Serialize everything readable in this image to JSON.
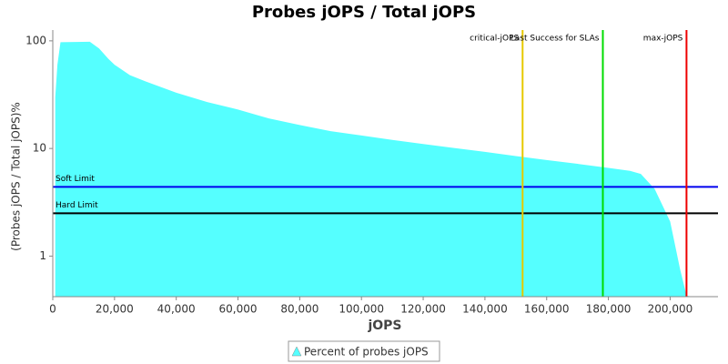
{
  "chart_data": {
    "type": "area",
    "title": "Probes jOPS / Total jOPS",
    "x_label": "jOPS",
    "y_label": "(Probes jOPS / Total jOPS)%",
    "log_scale_y": true,
    "xlim": [
      0,
      215500
    ],
    "ylim": [
      0.42,
      126
    ],
    "xticks": [
      0,
      {
        "value": 20000,
        "label": "20,000"
      },
      {
        "value": 40000,
        "label": "40,000"
      },
      {
        "value": 60000,
        "label": "60,000"
      },
      {
        "value": 80000,
        "label": "80,000"
      },
      {
        "value": 100000,
        "label": "100,000"
      },
      {
        "value": 120000,
        "label": "120,000"
      },
      {
        "value": 140000,
        "label": "140,000"
      },
      {
        "value": 160000,
        "label": "160,000"
      },
      {
        "value": 180000,
        "label": "180,000"
      },
      {
        "value": 200000,
        "label": "200,000"
      }
    ],
    "yticks": [
      1,
      10,
      100
    ],
    "series": [
      {
        "name": "Percent of probes jOPS",
        "color": "#55ffff",
        "x": [
          800,
          1500,
          2500,
          12000,
          15000,
          18000,
          20000,
          25000,
          30000,
          40000,
          50000,
          60000,
          70000,
          80000,
          90000,
          100000,
          110000,
          120000,
          130000,
          140000,
          150000,
          160000,
          170000,
          180000,
          187000,
          190500,
          195000,
          200000,
          203200,
          205300,
          207000,
          215500
        ],
        "values": [
          30,
          60,
          97,
          98,
          85,
          68,
          60,
          48,
          42,
          33,
          27,
          23,
          19,
          16.5,
          14.5,
          13.2,
          12,
          11,
          10.1,
          9.3,
          8.5,
          7.8,
          7.2,
          6.6,
          6.2,
          5.8,
          4.2,
          2.1,
          0.76,
          0.43,
          0.42,
          0.42
        ]
      }
    ],
    "vertical_lines": [
      {
        "label": "critical-jOPS",
        "value": 152200,
        "color": "#e6c800"
      },
      {
        "label": "Last Success for SLAs",
        "value": 178200,
        "color": "#00dd00"
      },
      {
        "label": "max-jOPS",
        "value": 205300,
        "color": "#ee0000"
      }
    ],
    "horizontal_lines": [
      {
        "label": "Soft Limit",
        "value": 4.4,
        "color": "#0000ee"
      },
      {
        "label": "Hard Limit",
        "value": 2.5,
        "color": "#000000"
      }
    ]
  }
}
